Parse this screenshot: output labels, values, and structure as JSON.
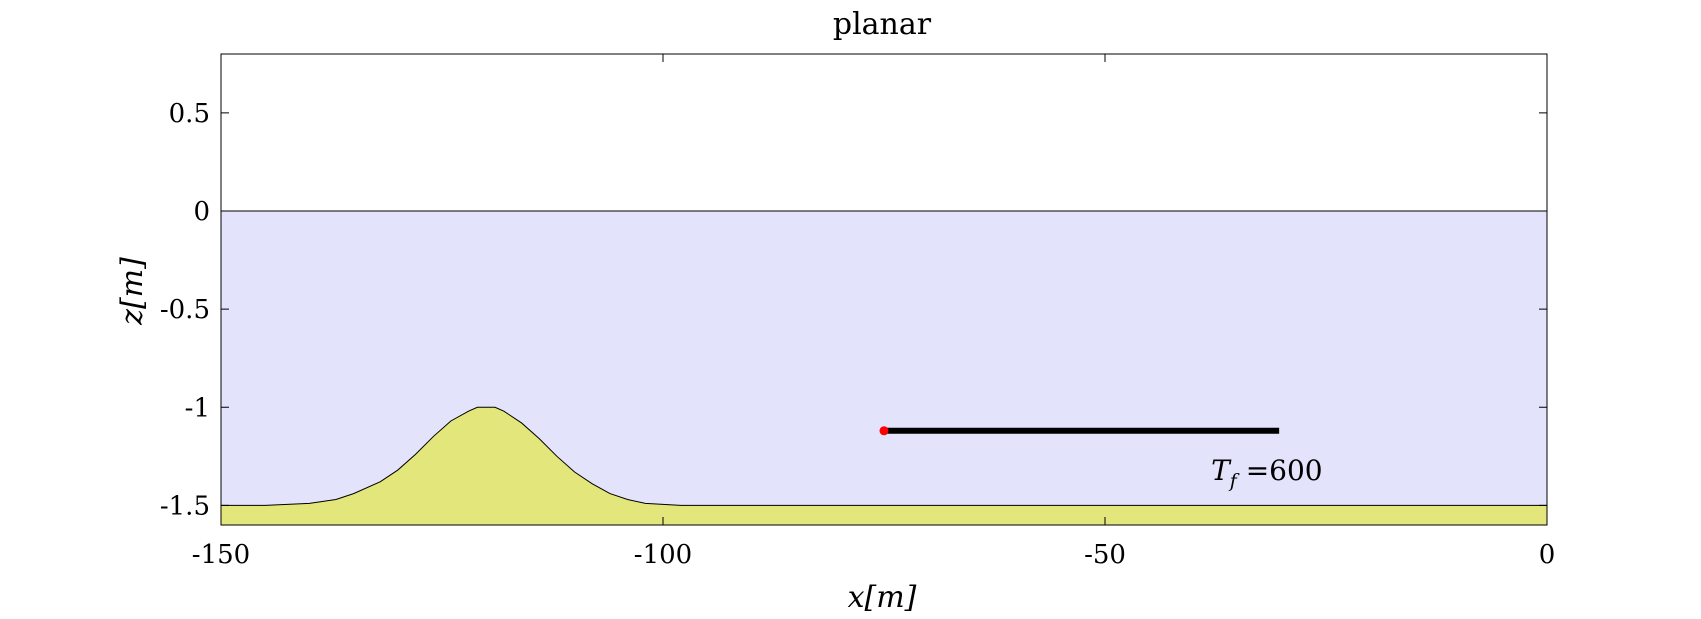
{
  "chart_data": {
    "type": "line",
    "title": "planar",
    "xlabel": "x[m]",
    "ylabel": "z[m]",
    "xlim": [
      -150,
      0
    ],
    "ylim": [
      -1.6,
      0.8
    ],
    "xticks": [
      -150,
      -100,
      -50,
      0
    ],
    "xtick_labels": [
      "-150",
      "-100",
      "-50",
      "0"
    ],
    "yticks": [
      0.5,
      0,
      -0.5,
      -1,
      -1.5
    ],
    "ytick_labels": [
      "0.5",
      "0",
      "-0.5",
      "-1",
      "-1.5"
    ],
    "grid": false,
    "water_region": {
      "z_top": 0,
      "color": "#e3e3fb"
    },
    "seabed": {
      "color": "#e3e67a",
      "x": [
        -150,
        -145,
        -140,
        -137,
        -135,
        -132,
        -130,
        -128,
        -126,
        -124,
        -122,
        -121,
        -120,
        -119,
        -118,
        -116,
        -114,
        -112,
        -110,
        -108,
        -106,
        -104,
        -102,
        -100,
        -98,
        -96,
        -90,
        -50,
        0
      ],
      "z": [
        -1.5,
        -1.5,
        -1.49,
        -1.47,
        -1.44,
        -1.38,
        -1.32,
        -1.24,
        -1.15,
        -1.07,
        -1.02,
        -1.0,
        -1.0,
        -1.0,
        -1.02,
        -1.08,
        -1.16,
        -1.25,
        -1.33,
        -1.39,
        -1.44,
        -1.47,
        -1.49,
        -1.495,
        -1.5,
        -1.5,
        -1.5,
        -1.5,
        -1.5
      ]
    },
    "series": [
      {
        "x": [
          -75,
          -30.3
        ],
        "z": [
          -1.12,
          -1.12
        ],
        "color": "#000000"
      }
    ],
    "marker": {
      "x": -75,
      "z": -1.12,
      "color": "#ff0000"
    },
    "annotation": {
      "text": "T_f =600",
      "x": -38,
      "z": -1.37
    }
  }
}
